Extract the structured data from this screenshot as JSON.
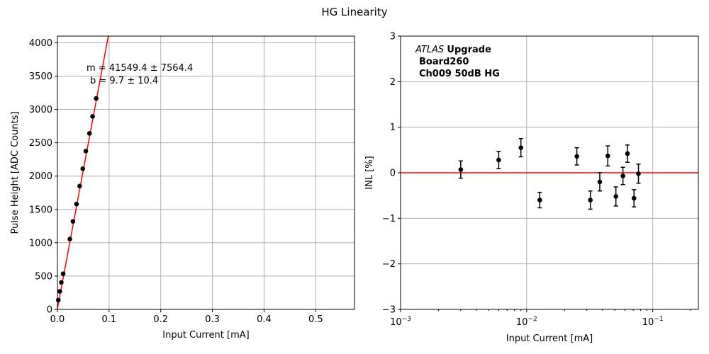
{
  "suptitle": "HG Linearity",
  "chart_data": [
    {
      "type": "scatter",
      "xlabel": "Input Current [mA]",
      "ylabel": "Pulse Height [ADC Counts]",
      "xlim": [
        0,
        0.575
      ],
      "ylim": [
        0,
        4100
      ],
      "xticks": [
        0.0,
        0.1,
        0.2,
        0.3,
        0.4,
        0.5
      ],
      "xtick_labels": [
        "0.0",
        "0.1",
        "0.2",
        "0.3",
        "0.4",
        "0.5"
      ],
      "yticks": [
        0,
        500,
        1000,
        1500,
        2000,
        2500,
        3000,
        3500,
        4000
      ],
      "ytick_labels": [
        "0",
        "500",
        "1000",
        "1500",
        "2000",
        "2500",
        "3000",
        "3500",
        "4000"
      ],
      "grid": true,
      "points": [
        {
          "x": 0.0017,
          "y": 140
        },
        {
          "x": 0.0045,
          "y": 270
        },
        {
          "x": 0.0075,
          "y": 405
        },
        {
          "x": 0.011,
          "y": 535
        },
        {
          "x": 0.024,
          "y": 1055
        },
        {
          "x": 0.03,
          "y": 1320
        },
        {
          "x": 0.037,
          "y": 1580
        },
        {
          "x": 0.043,
          "y": 1850
        },
        {
          "x": 0.049,
          "y": 2110
        },
        {
          "x": 0.055,
          "y": 2375
        },
        {
          "x": 0.062,
          "y": 2640
        },
        {
          "x": 0.068,
          "y": 2895
        },
        {
          "x": 0.075,
          "y": 3165
        }
      ],
      "fit": {
        "slope": 41549.4,
        "intercept": 9.7,
        "color": "#ff0000"
      },
      "annotation_lines": [
        "m = 41549.4 ± 7564.4",
        "b = 9.7 ± 10.4"
      ],
      "marker_color": "#000000"
    },
    {
      "type": "scatter",
      "xlabel": "Input Current [mA]",
      "ylabel": "INL [%]",
      "xscale": "log",
      "xlim": [
        0.001,
        0.23
      ],
      "ylim": [
        -3,
        3
      ],
      "xticks": [
        0.001,
        0.01,
        0.1
      ],
      "xtick_labels": [
        {
          "base": "10",
          "exp": "−3"
        },
        {
          "base": "10",
          "exp": "−2"
        },
        {
          "base": "10",
          "exp": "−1"
        }
      ],
      "yticks": [
        -3,
        -2,
        -1,
        0,
        1,
        2,
        3
      ],
      "ytick_labels": [
        "−3",
        "−2",
        "−1",
        "0",
        "1",
        "2",
        "3"
      ],
      "grid": true,
      "reference_line": {
        "y": 0,
        "color": "#ff0000"
      },
      "points": [
        {
          "x": 0.003,
          "y": 0.07,
          "err": 0.19
        },
        {
          "x": 0.006,
          "y": 0.28,
          "err": 0.19
        },
        {
          "x": 0.009,
          "y": 0.55,
          "err": 0.2
        },
        {
          "x": 0.0127,
          "y": -0.6,
          "err": 0.17
        },
        {
          "x": 0.025,
          "y": 0.36,
          "err": 0.19
        },
        {
          "x": 0.032,
          "y": -0.6,
          "err": 0.2
        },
        {
          "x": 0.038,
          "y": -0.2,
          "err": 0.2
        },
        {
          "x": 0.044,
          "y": 0.37,
          "err": 0.22
        },
        {
          "x": 0.051,
          "y": -0.52,
          "err": 0.21
        },
        {
          "x": 0.058,
          "y": -0.07,
          "err": 0.19
        },
        {
          "x": 0.063,
          "y": 0.42,
          "err": 0.19
        },
        {
          "x": 0.071,
          "y": -0.56,
          "err": 0.19
        },
        {
          "x": 0.077,
          "y": -0.02,
          "err": 0.21
        }
      ],
      "annotation": {
        "italic": "ATLAS",
        "bold": "Upgrade",
        "line2": "Board260",
        "line3": "Ch009 50dB HG"
      },
      "marker_color": "#000000"
    }
  ]
}
